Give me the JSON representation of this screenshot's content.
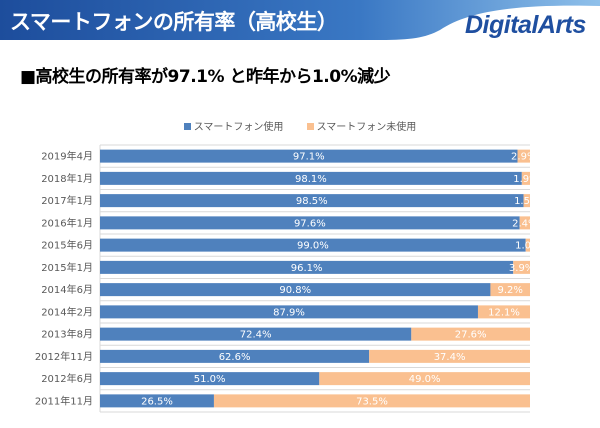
{
  "header": {
    "title": "スマートフォンの所有率（高校生）",
    "logo": "DigitalArts"
  },
  "subtitle": "■高校生の所有率が97.1% と昨年から1.0%減少",
  "chart_data": {
    "type": "bar",
    "stacked": true,
    "orientation": "horizontal",
    "categories": [
      "2019年4月",
      "2018年1月",
      "2017年1月",
      "2016年1月",
      "2015年6月",
      "2015年1月",
      "2014年6月",
      "2014年2月",
      "2013年8月",
      "2012年11月",
      "2012年6月",
      "2011年11月"
    ],
    "series": [
      {
        "name": "スマートフォン使用",
        "color": "#4f81bd",
        "values": [
          97.1,
          98.1,
          98.5,
          97.6,
          99.0,
          96.1,
          90.8,
          87.9,
          72.4,
          62.6,
          51.0,
          26.5
        ]
      },
      {
        "name": "スマートフォン未使用",
        "color": "#fac090",
        "values": [
          2.9,
          1.9,
          1.5,
          2.4,
          1.0,
          3.9,
          9.2,
          12.1,
          27.6,
          37.4,
          49.0,
          73.5
        ]
      }
    ],
    "xlim": [
      0,
      100
    ],
    "legend": "top",
    "grid": true
  }
}
